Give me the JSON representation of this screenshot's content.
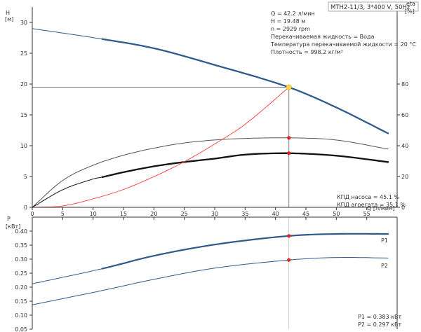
{
  "header": {
    "model": "MTH2-11/3, 3*400 V, 50Hz"
  },
  "colors": {
    "head_curve": "#2e5b8c",
    "efficiency_curve": "#ff3b3b",
    "eta_pump": "#555555",
    "eta_total": "#111111",
    "power_curve": "#2e5b8c",
    "duty_marker": "#ffd84a",
    "point_marker": "#e0201b",
    "axis": "#333333",
    "duty_line": "#666666"
  },
  "info": {
    "q": "Q = 42.2 л/мин",
    "h": "H = 19.48 м",
    "n": "n = 2929 rpm",
    "fluid": "Перекачиваемая жидкость = Вода",
    "temp": "Температура перекачиваемой жидкости = 20 °C",
    "density": "Плотность = 998.2 кг/м³"
  },
  "efficiency_labels": {
    "pump": "КПД насоса = 45.1 %",
    "total": "КПД агрегата = 35.1 %"
  },
  "power_labels": {
    "p1": "P1 = 0.383 кВт",
    "p2": "P2 = 0.297 кВт"
  },
  "chart_data": [
    {
      "type": "line",
      "title": "",
      "xlabel": "Q [л/мин]",
      "ylabel": "H\n[м]",
      "y2label": "eta\n[%]",
      "xlim": [
        0,
        60
      ],
      "ylim": [
        0,
        32.5
      ],
      "y2lim": [
        0,
        130
      ],
      "grid": false,
      "x_ticks": [
        0,
        5,
        10,
        15,
        20,
        25,
        30,
        35,
        40,
        45,
        50,
        55
      ],
      "y_ticks": [
        0,
        5,
        10,
        15,
        20,
        25,
        30
      ],
      "y2_ticks": [
        0,
        20,
        40,
        60,
        80
      ],
      "duty_point": {
        "x": 42.2,
        "y": 19.48
      },
      "series": [
        {
          "axis": "y",
          "role": "head",
          "x": [
            0,
            11.5,
            20,
            30,
            42.2,
            50,
            58.5
          ],
          "y": [
            29,
            27.3,
            25.8,
            23.1,
            19.48,
            16.2,
            12.0
          ],
          "segments": [
            [
              0,
              11.5,
              "thin"
            ],
            [
              11.5,
              58.5,
              "thick"
            ]
          ]
        },
        {
          "axis": "y2",
          "role": "eta_pump",
          "x": [
            0,
            5,
            10,
            15,
            20,
            25,
            30,
            35,
            42.2,
            50,
            58.5
          ],
          "y": [
            0,
            17.5,
            27.3,
            33.8,
            38.4,
            41.8,
            43.7,
            44.7,
            45.1,
            43.7,
            37.8
          ],
          "segments": [
            [
              0,
              58.5,
              "thin"
            ]
          ]
        },
        {
          "axis": "y2",
          "role": "eta_total",
          "x": [
            0,
            5,
            10,
            11.5,
            15,
            20,
            25,
            30,
            35,
            42.2,
            50,
            58.5
          ],
          "y": [
            0,
            11.4,
            18.4,
            19.6,
            22.8,
            26.6,
            29.4,
            31.6,
            34.2,
            35.1,
            33.5,
            29.4
          ],
          "segments": [
            [
              0,
              11.5,
              "thin"
            ],
            [
              11.5,
              58.5,
              "thick"
            ]
          ]
        },
        {
          "axis": "y2",
          "role": "efficiency",
          "x": [
            0,
            5,
            10,
            15,
            20,
            25,
            30,
            35,
            42.2
          ],
          "y": [
            0,
            0.9,
            5.5,
            11.6,
            19.9,
            29.6,
            41.1,
            53.9,
            77.9
          ],
          "segments": [
            [
              0,
              42.2,
              "thin"
            ]
          ]
        }
      ],
      "markers": [
        {
          "axis": "y",
          "x": 42.2,
          "y": 19.48,
          "role": "duty"
        },
        {
          "axis": "y2",
          "x": 42.2,
          "y": 45.1,
          "role": "point"
        },
        {
          "axis": "y2",
          "x": 42.2,
          "y": 35.1,
          "role": "point"
        }
      ]
    },
    {
      "type": "line",
      "title": "",
      "xlabel": "",
      "ylabel": "P\n[кВт]",
      "xlim": [
        0,
        60
      ],
      "ylim": [
        0.05,
        0.45
      ],
      "grid": false,
      "y_ticks": [
        0.05,
        0.1,
        0.15,
        0.2,
        0.25,
        0.3,
        0.35,
        0.4
      ],
      "series": [
        {
          "name": "P1",
          "x": [
            0,
            11.5,
            20,
            30,
            42.2,
            50,
            58.5
          ],
          "y": [
            0.212,
            0.266,
            0.312,
            0.352,
            0.383,
            0.39,
            0.39
          ],
          "segments": [
            [
              0,
              11.5,
              "thin"
            ],
            [
              11.5,
              58.5,
              "thick"
            ]
          ]
        },
        {
          "name": "P2",
          "x": [
            0,
            11.5,
            20,
            30,
            42.2,
            50,
            58.5
          ],
          "y": [
            0.137,
            0.188,
            0.228,
            0.268,
            0.297,
            0.306,
            0.304
          ],
          "segments": [
            [
              0,
              58.5,
              "thin"
            ]
          ]
        }
      ],
      "markers": [
        {
          "x": 42.2,
          "y": 0.383,
          "role": "point"
        },
        {
          "x": 42.2,
          "y": 0.297,
          "role": "point"
        }
      ]
    }
  ]
}
